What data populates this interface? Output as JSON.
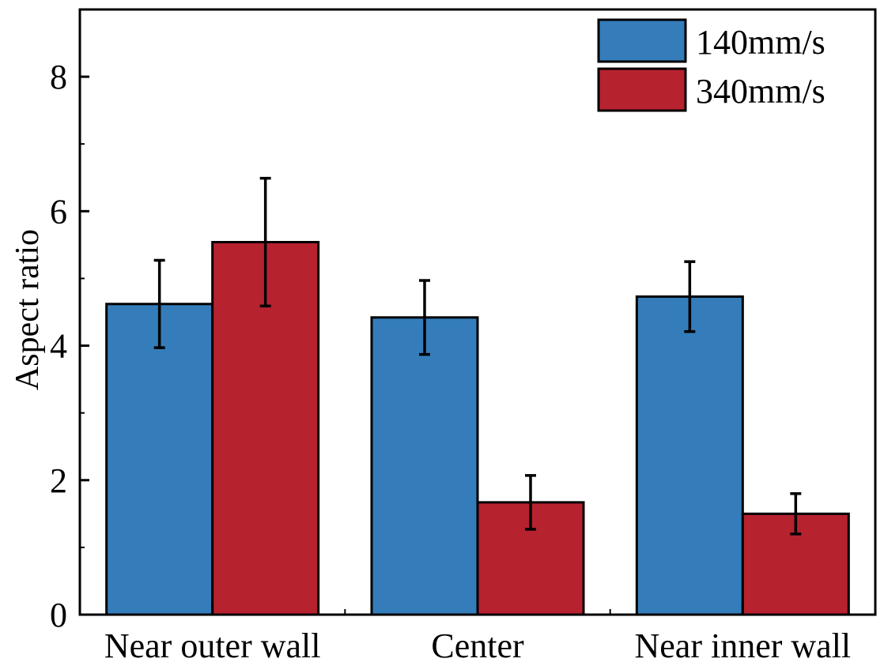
{
  "chart_data": {
    "type": "bar",
    "categories": [
      "Near outer wall",
      "Center",
      "Near inner wall"
    ],
    "series": [
      {
        "name": "140mm/s",
        "values": [
          4.62,
          4.42,
          4.73
        ],
        "errors": [
          0.65,
          0.55,
          0.52
        ],
        "color": "#347dba"
      },
      {
        "name": "340mm/s",
        "values": [
          5.54,
          1.67,
          1.5
        ],
        "errors": [
          0.95,
          0.4,
          0.3
        ],
        "color": "#b7222f"
      }
    ],
    "title": "",
    "xlabel": "",
    "ylabel": "Aspect ratio",
    "ylim": [
      0,
      9
    ],
    "yticks": [
      "0",
      "2",
      "4",
      "6",
      "8"
    ],
    "grid": false,
    "legend_position": "top-right"
  }
}
